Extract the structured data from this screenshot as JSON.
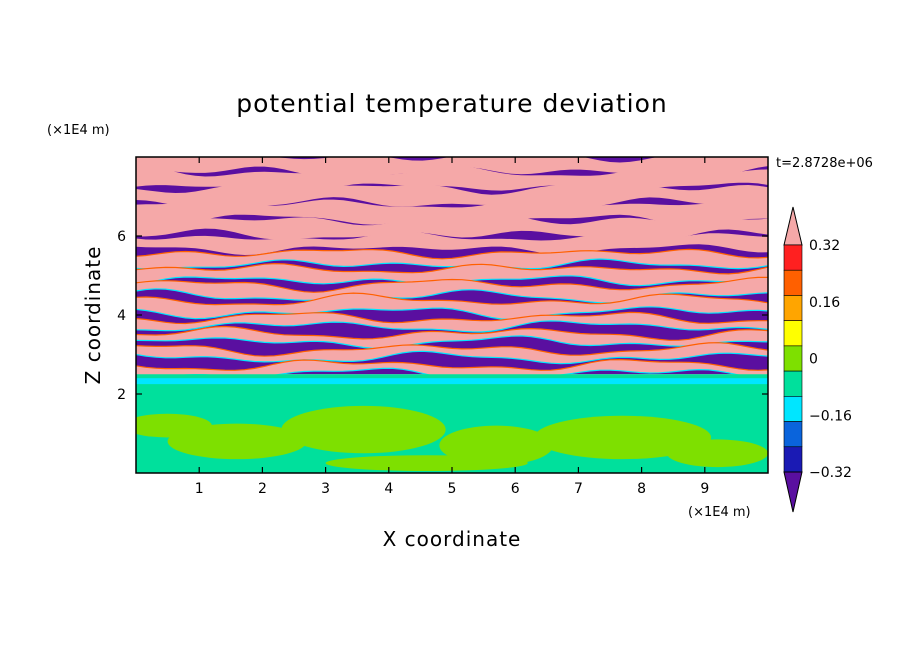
{
  "chart_data": {
    "type": "heatmap",
    "title": "potential temperature deviation",
    "xlabel": "X coordinate",
    "ylabel": "Z coordinate",
    "x_unit": "(×1E4 m)",
    "y_unit": "(×1E4 m)",
    "time_label": "t=2.8728e+06",
    "xlim": [
      0,
      10
    ],
    "ylim": [
      0,
      8
    ],
    "x_ticks": [
      "1",
      "2",
      "3",
      "4",
      "5",
      "6",
      "7",
      "8",
      "9"
    ],
    "y_ticks": [
      "2",
      "4",
      "6"
    ],
    "colorbar": {
      "levels": [
        -0.4,
        -0.32,
        -0.24,
        -0.16,
        -0.08,
        0,
        0.08,
        0.16,
        0.24,
        0.32,
        0.4
      ],
      "labels": [
        "0.32",
        "0.16",
        "0",
        "−0.16",
        "−0.32"
      ],
      "colors_low_to_high": [
        "#5a0fa0",
        "#1a1ab4",
        "#0a64dc",
        "#00e6ff",
        "#00e09c",
        "#7ee000",
        "#ffff00",
        "#ffa500",
        "#ff6000",
        "#ff2020",
        "#f5a8a8"
      ],
      "extend": "both"
    },
    "structure": {
      "lower_layer_z": [
        0,
        2
      ],
      "lower_layer_values": [
        0,
        0.08
      ],
      "interface_band_z": [
        2.0,
        2.5
      ],
      "interface_band_value": -0.1,
      "upper_layer_z": [
        2.5,
        8
      ],
      "upper_layer_pattern": "alternating horizontal stripes of about -0.4 and +0.4"
    }
  }
}
